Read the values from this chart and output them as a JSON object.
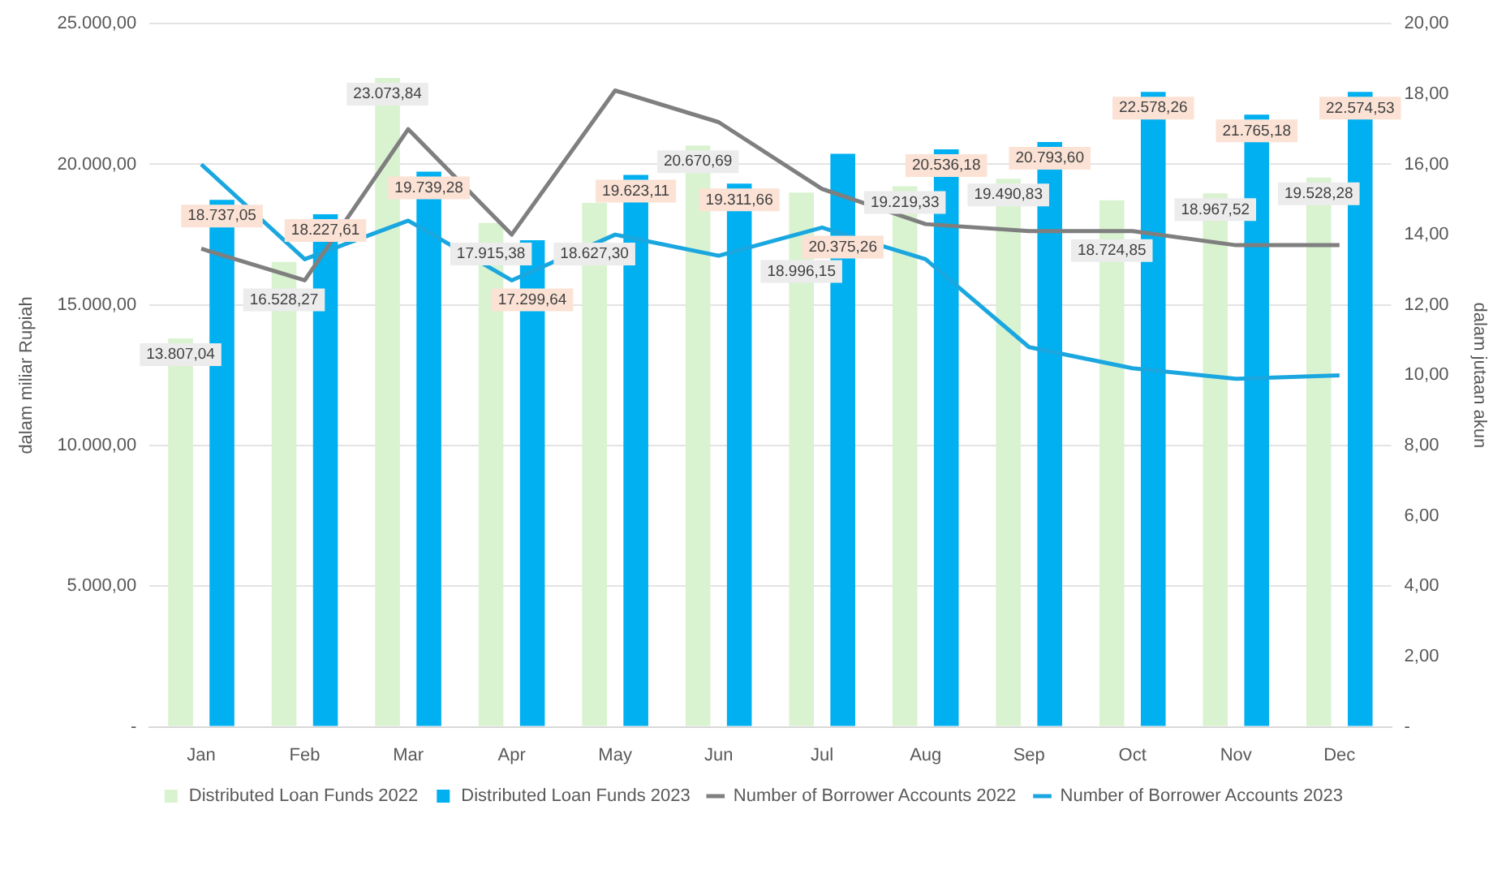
{
  "chart_data": {
    "type": "bar",
    "ylabel": "dalam miliar Rupiah",
    "y2label": "dalam jutaan akun",
    "categories": [
      "Jan",
      "Feb",
      "Mar",
      "Apr",
      "May",
      "Jun",
      "Jul",
      "Aug",
      "Sep",
      "Oct",
      "Nov",
      "Dec"
    ],
    "series": [
      {
        "name": "Distributed Loan Funds 2022",
        "color": "#d9f2d0",
        "values": [
          13807.04,
          16528.27,
          23073.84,
          17915.38,
          18627.3,
          20670.69,
          18996.15,
          19219.33,
          19490.83,
          18724.85,
          18967.52,
          19528.28
        ],
        "value_labels": [
          "13.807,04",
          "16.528,27",
          "23.073,84",
          "17.915,38",
          "18.627,30",
          "20.670,69",
          "18.996,15",
          "19.219,33",
          "19.490,83",
          "18.724,85",
          "18.967,52",
          "19.528,28"
        ]
      },
      {
        "name": "Distributed Loan Funds 2023",
        "color": "#00b0f0",
        "values": [
          18737.05,
          18227.61,
          19739.28,
          17299.64,
          19623.11,
          19311.66,
          20375.26,
          20536.18,
          20793.6,
          22578.26,
          21765.18,
          22574.53
        ],
        "value_labels": [
          "18.737,05",
          "18.227,61",
          "19.739,28",
          "17.299,64",
          "19.623,11",
          "19.311,66",
          "20.375,26",
          "20.536,18",
          "20.793,60",
          "22.578,26",
          "21.765,18",
          "22.574,53"
        ]
      },
      {
        "name": "Number of Borrower Accounts 2022",
        "type": "line",
        "axis": "y2",
        "color": "#7f7f7f",
        "values": [
          13.6,
          12.7,
          17.0,
          14.0,
          18.1,
          17.2,
          15.3,
          14.3,
          14.1,
          14.1,
          13.7,
          13.7
        ]
      },
      {
        "name": "Number of Borrower Accounts 2023",
        "type": "line",
        "axis": "y2",
        "color": "#1aa7e0",
        "values": [
          16.0,
          13.3,
          14.4,
          12.7,
          14.0,
          13.4,
          14.2,
          13.3,
          10.8,
          10.2,
          9.9,
          10.0
        ]
      }
    ],
    "ylim": [
      0,
      25000
    ],
    "yticks": [
      {
        "value": 0,
        "label": "-"
      },
      {
        "value": 5000,
        "label": "5.000,00"
      },
      {
        "value": 10000,
        "label": "10.000,00"
      },
      {
        "value": 15000,
        "label": "15.000,00"
      },
      {
        "value": 20000,
        "label": "20.000,00"
      },
      {
        "value": 25000,
        "label": "25.000,00"
      }
    ],
    "y2lim": [
      0,
      20
    ],
    "y2ticks": [
      {
        "value": 0,
        "label": "-"
      },
      {
        "value": 2,
        "label": "2,00"
      },
      {
        "value": 4,
        "label": "4,00"
      },
      {
        "value": 6,
        "label": "6,00"
      },
      {
        "value": 8,
        "label": "8,00"
      },
      {
        "value": 10,
        "label": "10,00"
      },
      {
        "value": 12,
        "label": "12,00"
      },
      {
        "value": 14,
        "label": "14,00"
      },
      {
        "value": 16,
        "label": "16,00"
      },
      {
        "value": 18,
        "label": "18,00"
      },
      {
        "value": 20,
        "label": "20,00"
      }
    ],
    "grid": "y",
    "legend": "bottom",
    "marker": "none",
    "line_style": "solid"
  }
}
